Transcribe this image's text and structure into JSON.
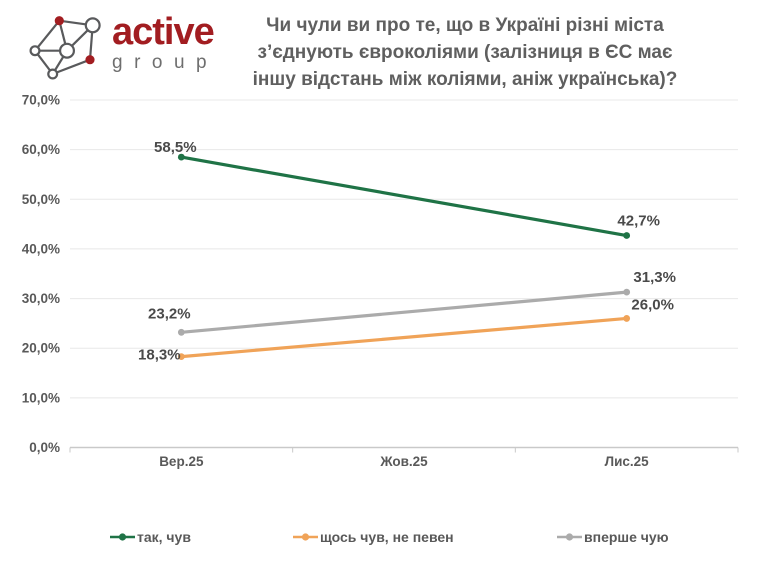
{
  "logo": {
    "brand": "active",
    "group": "group",
    "brand_color": "#a21d21"
  },
  "title": {
    "text": "Чи чули ви про те, що в Україні різні міста з’єднують євроколіями (залізниця в ЄС має іншу відстань між коліями, аніж українська)?"
  },
  "chart_data": {
    "type": "line",
    "title": "Чи чули ви про те, що в Україні різні міста з’єднують євроколіями (залізниця в ЄС має іншу відстань між коліями, аніж українська)?",
    "categories": [
      "Вер.25",
      "Жов.25",
      "Лис.25"
    ],
    "series": [
      {
        "name": "вперше чую",
        "color": "#ababab",
        "values": [
          23.2,
          null,
          31.3
        ],
        "point_labels": [
          "23,2%",
          null,
          "31,3%"
        ]
      },
      {
        "name": "щось чув, не певен",
        "color": "#f0a358",
        "values": [
          18.3,
          null,
          26.0
        ],
        "point_labels": [
          "18,3%",
          null,
          "26,0%"
        ]
      },
      {
        "name": "так, чув",
        "color": "#1f7346",
        "values": [
          58.5,
          null,
          42.7
        ],
        "point_labels": [
          "58,5%",
          null,
          "42,7%"
        ]
      }
    ],
    "legend_order": [
      "так, чув",
      "щось чув, не певен",
      "вперше чую"
    ],
    "ylim": [
      0,
      70
    ],
    "y_tick_step": 10,
    "y_tick_labels": [
      "0,0%",
      "10,0%",
      "20,0%",
      "30,0%",
      "40,0%",
      "50,0%",
      "60,0%",
      "70,0%"
    ],
    "grid": "horizontal",
    "legend_position": "bottom",
    "gridline_color": "#e8e8e8",
    "baseline_color": "#c9c9c9"
  }
}
